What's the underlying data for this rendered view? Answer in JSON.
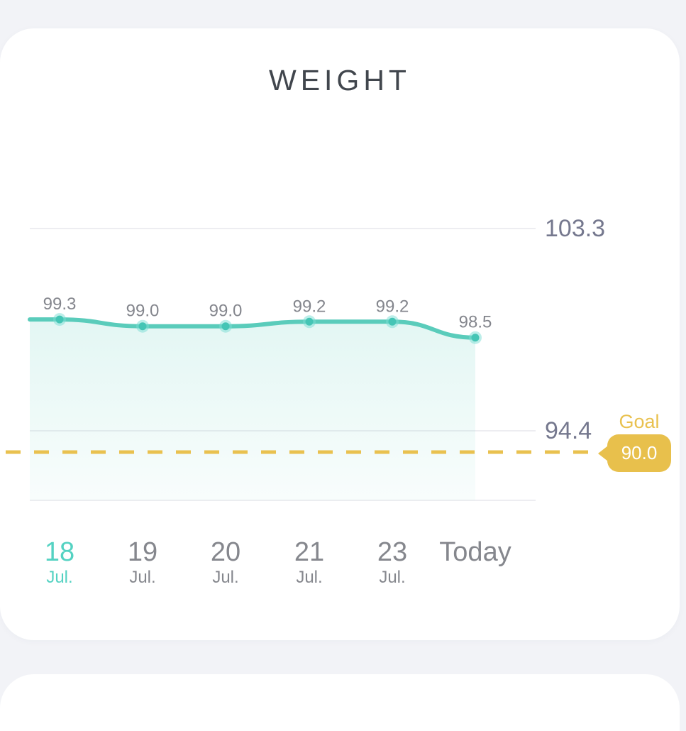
{
  "page": {
    "background": "#f2f3f7",
    "card_background": "#ffffff"
  },
  "header": {
    "title": "WEIGHT"
  },
  "chart_data": {
    "type": "line",
    "title": "WEIGHT",
    "series": [
      {
        "name": "Weight",
        "values": [
          99.3,
          99.0,
          99.0,
          99.2,
          99.2,
          98.5
        ]
      }
    ],
    "point_labels": [
      "99.3",
      "99.0",
      "99.0",
      "99.2",
      "99.2",
      "98.5"
    ],
    "categories": [
      {
        "day": "18",
        "month": "Jul.",
        "selected": true
      },
      {
        "day": "19",
        "month": "Jul.",
        "selected": false
      },
      {
        "day": "20",
        "month": "Jul.",
        "selected": false
      },
      {
        "day": "21",
        "month": "Jul.",
        "selected": false
      },
      {
        "day": "23",
        "month": "Jul.",
        "selected": false
      },
      {
        "day": "Today",
        "month": "",
        "selected": false
      }
    ],
    "y_axis": {
      "side": "right",
      "ticks": [
        "103.3",
        "94.4"
      ]
    },
    "goal": {
      "label": "Goal",
      "value": "90.0",
      "line_style": "dashed"
    },
    "grid": true,
    "legend": false,
    "area_fill": true,
    "colors": {
      "line": "#5accbb",
      "point": "#44c5b5",
      "point_halo": "#7aded3",
      "goal_accent": "#e9c14f",
      "goal_value_text": "#ffffff",
      "tick_text": "#75788e",
      "point_label_text": "#84868d",
      "date_text": "#85878d",
      "date_selected_text": "#54d2c2",
      "gridline": "#ededf1"
    }
  }
}
